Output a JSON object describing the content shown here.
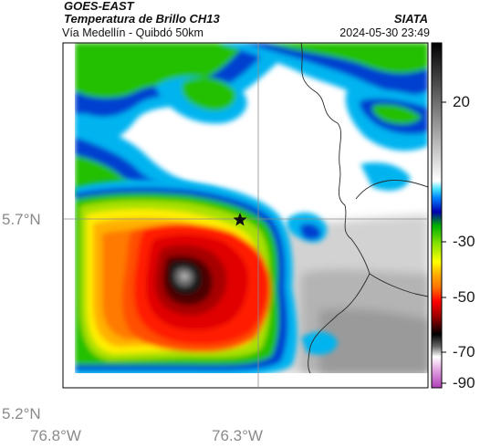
{
  "header": {
    "satellite": "GOES-EAST",
    "product": "Temperatura de Brillo CH13",
    "subtitle": "Vía Medellín - Quibdó 50km",
    "organization": "SIATA",
    "datetime": "2024-05-30 23:49"
  },
  "axes": {
    "lat_labels": [
      "5.7°N",
      "5.2°N"
    ],
    "lon_labels": [
      "76.8°W",
      "76.3°W"
    ]
  },
  "colorbar": {
    "tick_labels": [
      "20",
      "-30",
      "-50",
      "-70",
      "-90"
    ]
  },
  "map": {
    "marker": "star-icon",
    "colors": {
      "red": "#ff1a00",
      "orange": "#ff9900",
      "yellow": "#ffee00",
      "green": "#22c000",
      "blue": "#0033cc",
      "cyan": "#00b4f0"
    }
  }
}
